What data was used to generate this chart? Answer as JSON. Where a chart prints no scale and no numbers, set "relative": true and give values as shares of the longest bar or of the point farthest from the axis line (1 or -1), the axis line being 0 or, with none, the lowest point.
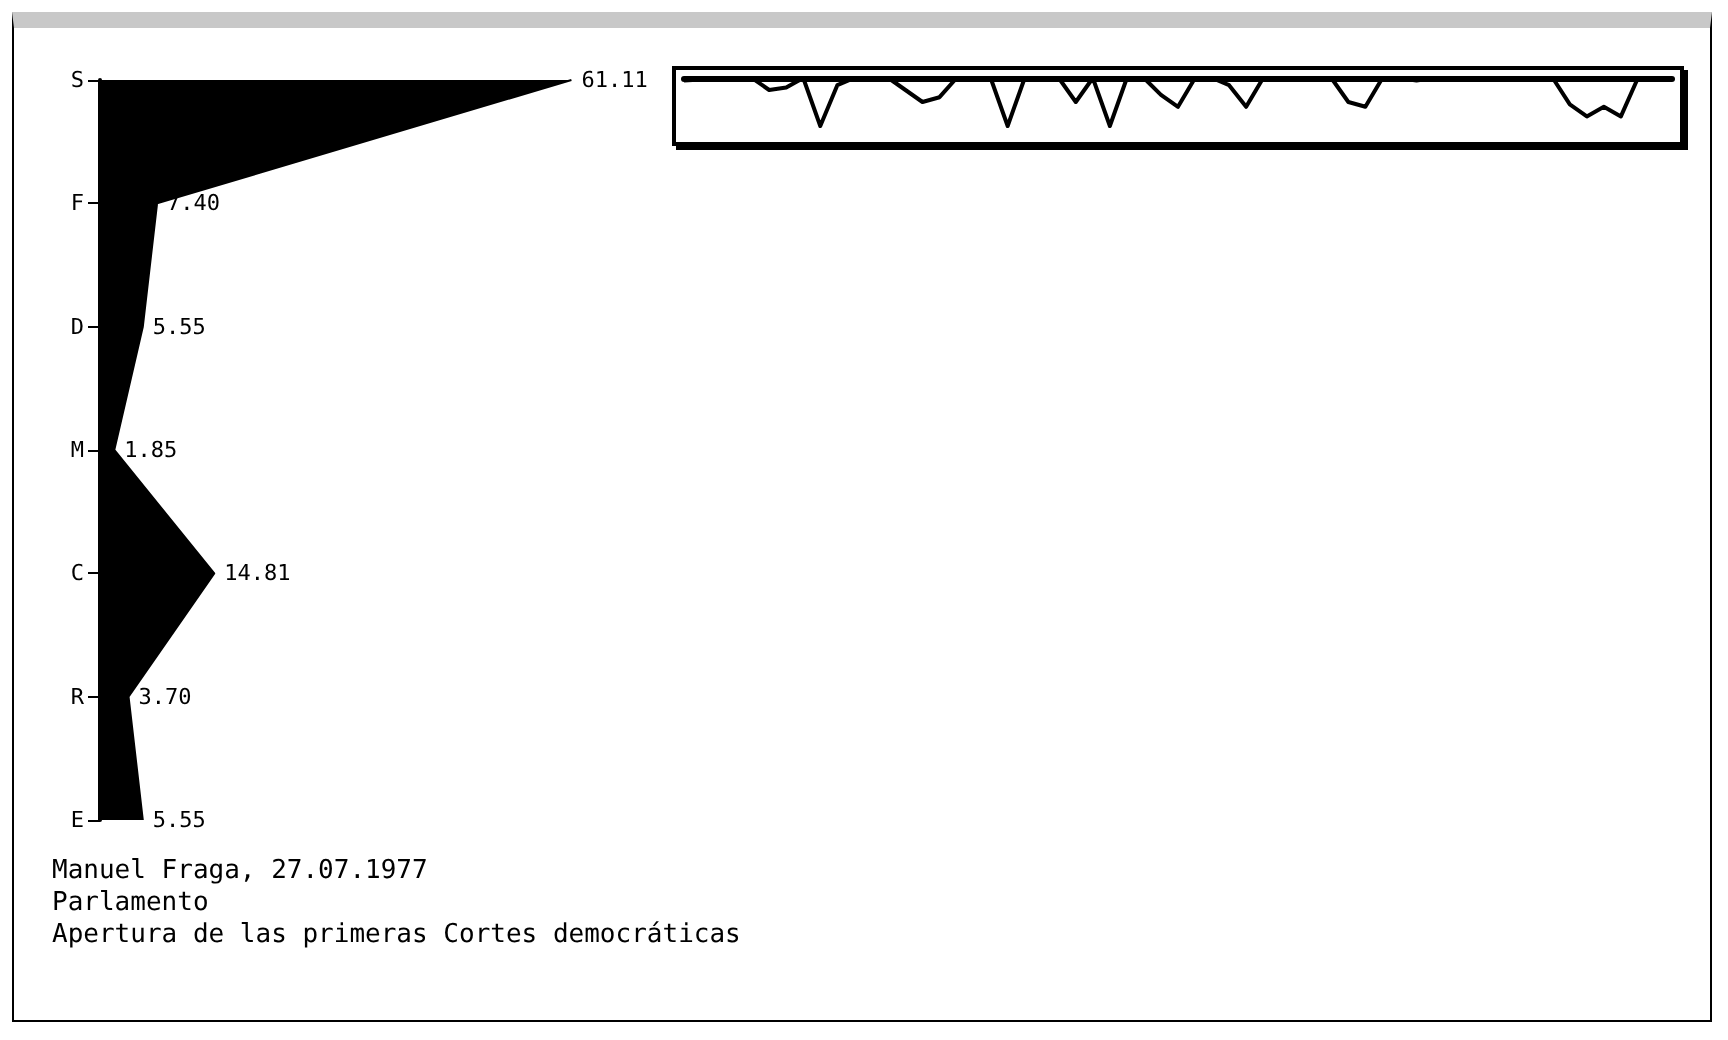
{
  "chart_data": [
    {
      "type": "area",
      "orientation": "horizontal",
      "categories": [
        "S",
        "F",
        "D",
        "M",
        "C",
        "R",
        "E"
      ],
      "values": [
        61.11,
        7.4,
        5.55,
        1.85,
        14.81,
        3.7,
        5.55
      ],
      "color": "#000000",
      "value_labels": [
        "61.11",
        "7.40",
        "5.55",
        "1.85",
        "14.81",
        "3.70",
        "5.55"
      ],
      "tick_labels": "y",
      "grid": false,
      "annotations": [
        "Manuel Fraga, 27.07.1977",
        "Parlamento",
        "Apertura de las primeras Cortes democráticas"
      ]
    },
    {
      "type": "line",
      "relative": true,
      "color": "#000000",
      "grid": false,
      "categories": [
        null,
        null,
        null,
        null,
        null,
        null,
        null,
        null,
        null,
        null,
        null,
        null,
        null,
        null,
        null,
        null,
        null,
        null,
        null,
        null,
        null,
        null,
        null,
        null,
        null,
        null,
        null,
        null,
        null,
        null,
        null,
        null,
        null,
        null,
        null,
        null,
        null,
        null,
        null,
        null,
        null,
        null,
        null,
        null,
        null,
        null,
        null,
        null,
        null,
        null,
        null,
        null,
        null,
        null,
        null,
        null,
        null,
        null,
        null
      ],
      "values": [
        -0.05,
        -0.03,
        0,
        0,
        0,
        -0.25,
        -0.2,
        0,
        -1,
        -0.15,
        0,
        0,
        0,
        -0.25,
        -0.5,
        -0.4,
        0,
        0,
        0,
        -1,
        0,
        0,
        0,
        -0.5,
        0,
        -1,
        0,
        0,
        -0.35,
        -0.6,
        0,
        0,
        -0.15,
        -0.6,
        0,
        0,
        0,
        0,
        0,
        -0.5,
        -0.6,
        0,
        0,
        -0.05,
        0,
        0,
        0,
        0,
        0,
        0,
        0,
        0,
        -0.55,
        -0.8,
        -0.6,
        -0.8,
        0,
        0,
        0
      ]
    }
  ]
}
